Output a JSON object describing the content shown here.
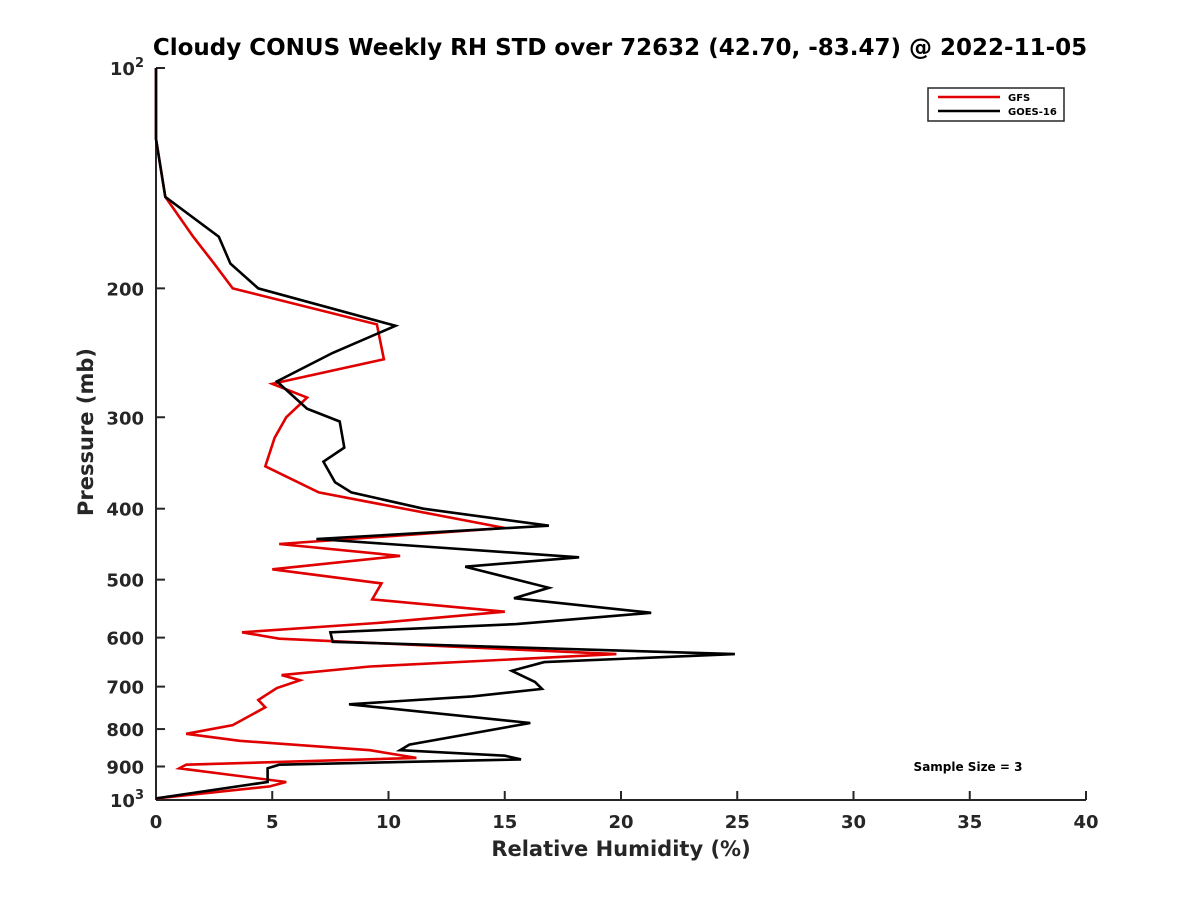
{
  "chart_data": {
    "type": "line",
    "title": "Cloudy CONUS Weekly RH STD over 72632 (42.70, -83.47) @ 2022-11-05",
    "xlabel": "Relative Humidity (%)",
    "ylabel": "Pressure (mb)",
    "xlim": [
      0,
      40
    ],
    "ylim": [
      100,
      1000
    ],
    "yscale": "log",
    "y_reversed": true,
    "x_ticks": [
      "0",
      "5",
      "10",
      "15",
      "20",
      "25",
      "30",
      "35",
      "40"
    ],
    "y_ticks": [
      {
        "value": 100,
        "base": "10",
        "exp": "2"
      },
      {
        "value": 200,
        "label": "200"
      },
      {
        "value": 300,
        "label": "300"
      },
      {
        "value": 400,
        "label": "400"
      },
      {
        "value": 500,
        "label": "500"
      },
      {
        "value": 600,
        "label": "600"
      },
      {
        "value": 700,
        "label": "700"
      },
      {
        "value": 800,
        "label": "800"
      },
      {
        "value": 900,
        "label": "900"
      },
      {
        "value": 1000,
        "base": "10",
        "exp": "3"
      }
    ],
    "grid": false,
    "legend_position": "top-right",
    "annotation": "Sample Size = 3",
    "series": [
      {
        "name": "GFS",
        "color": "#e00000",
        "points": [
          {
            "x": 0.0,
            "y": 100
          },
          {
            "x": 0.0,
            "y": 125
          },
          {
            "x": 0.4,
            "y": 150
          },
          {
            "x": 1.6,
            "y": 170
          },
          {
            "x": 2.5,
            "y": 185
          },
          {
            "x": 3.3,
            "y": 200
          },
          {
            "x": 9.5,
            "y": 224
          },
          {
            "x": 9.8,
            "y": 250
          },
          {
            "x": 5.0,
            "y": 270
          },
          {
            "x": 6.5,
            "y": 282
          },
          {
            "x": 5.6,
            "y": 300
          },
          {
            "x": 5.1,
            "y": 320
          },
          {
            "x": 4.7,
            "y": 350
          },
          {
            "x": 7.0,
            "y": 380
          },
          {
            "x": 15.0,
            "y": 425
          },
          {
            "x": 5.3,
            "y": 447
          },
          {
            "x": 10.5,
            "y": 464
          },
          {
            "x": 5.0,
            "y": 484
          },
          {
            "x": 9.7,
            "y": 506
          },
          {
            "x": 9.3,
            "y": 532
          },
          {
            "x": 15.0,
            "y": 553
          },
          {
            "x": 9.5,
            "y": 573
          },
          {
            "x": 3.7,
            "y": 590
          },
          {
            "x": 5.3,
            "y": 602
          },
          {
            "x": 19.8,
            "y": 632
          },
          {
            "x": 9.2,
            "y": 657
          },
          {
            "x": 5.4,
            "y": 675
          },
          {
            "x": 6.2,
            "y": 686
          },
          {
            "x": 5.2,
            "y": 703
          },
          {
            "x": 4.4,
            "y": 730
          },
          {
            "x": 4.7,
            "y": 747
          },
          {
            "x": 3.3,
            "y": 790
          },
          {
            "x": 1.3,
            "y": 812
          },
          {
            "x": 3.6,
            "y": 830
          },
          {
            "x": 9.2,
            "y": 855
          },
          {
            "x": 11.2,
            "y": 876
          },
          {
            "x": 1.3,
            "y": 895
          },
          {
            "x": 1.0,
            "y": 905
          },
          {
            "x": 5.6,
            "y": 945
          },
          {
            "x": 4.9,
            "y": 958
          },
          {
            "x": 0.0,
            "y": 995
          }
        ]
      },
      {
        "name": "GOES-16",
        "color": "#000000",
        "points": [
          {
            "x": 0.0,
            "y": 100
          },
          {
            "x": 0.0,
            "y": 125
          },
          {
            "x": 0.4,
            "y": 150
          },
          {
            "x": 2.7,
            "y": 170
          },
          {
            "x": 3.2,
            "y": 185
          },
          {
            "x": 4.4,
            "y": 200
          },
          {
            "x": 10.3,
            "y": 225
          },
          {
            "x": 7.6,
            "y": 245
          },
          {
            "x": 5.2,
            "y": 268
          },
          {
            "x": 6.5,
            "y": 292
          },
          {
            "x": 7.9,
            "y": 304
          },
          {
            "x": 8.1,
            "y": 330
          },
          {
            "x": 7.2,
            "y": 345
          },
          {
            "x": 7.7,
            "y": 368
          },
          {
            "x": 8.4,
            "y": 380
          },
          {
            "x": 11.5,
            "y": 400
          },
          {
            "x": 16.9,
            "y": 422
          },
          {
            "x": 6.9,
            "y": 440
          },
          {
            "x": 18.2,
            "y": 466
          },
          {
            "x": 13.3,
            "y": 480
          },
          {
            "x": 16.9,
            "y": 513
          },
          {
            "x": 15.4,
            "y": 530
          },
          {
            "x": 21.3,
            "y": 555
          },
          {
            "x": 15.5,
            "y": 575
          },
          {
            "x": 7.5,
            "y": 590
          },
          {
            "x": 7.6,
            "y": 608
          },
          {
            "x": 24.9,
            "y": 632
          },
          {
            "x": 16.7,
            "y": 648
          },
          {
            "x": 15.3,
            "y": 666
          },
          {
            "x": 16.3,
            "y": 690
          },
          {
            "x": 16.6,
            "y": 705
          },
          {
            "x": 13.6,
            "y": 722
          },
          {
            "x": 8.3,
            "y": 740
          },
          {
            "x": 16.1,
            "y": 785
          },
          {
            "x": 10.9,
            "y": 840
          },
          {
            "x": 10.5,
            "y": 855
          },
          {
            "x": 15.0,
            "y": 870
          },
          {
            "x": 15.7,
            "y": 880
          },
          {
            "x": 5.3,
            "y": 895
          },
          {
            "x": 4.8,
            "y": 905
          },
          {
            "x": 4.8,
            "y": 945
          },
          {
            "x": 0.0,
            "y": 995
          }
        ]
      }
    ]
  }
}
